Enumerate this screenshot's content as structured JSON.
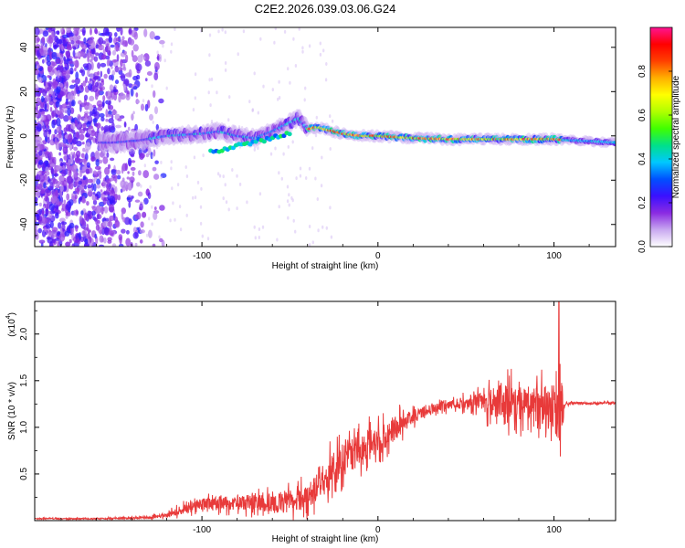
{
  "figure_title": "C2E2.2026.039.03.06.G24",
  "chart_data": [
    {
      "type": "heatmap",
      "title": "C2E2.2026.039.03.06.G24",
      "xlabel": "Height of straight line (km)",
      "ylabel": "Frequency (Hz)",
      "xlim": [
        -195,
        135
      ],
      "ylim": [
        -50,
        49
      ],
      "x_ticks": [
        -100,
        0,
        100
      ],
      "x_tick_labels": [
        "-100",
        "0",
        "100"
      ],
      "y_ticks": [
        -40,
        -20,
        0,
        20,
        40
      ],
      "y_tick_labels": [
        "-40",
        "-20",
        "0",
        "20",
        "40"
      ],
      "colorbar": {
        "label": "Normalized spectral amplitude",
        "range": [
          0,
          1
        ],
        "ticks": [
          0,
          0.2,
          0.4,
          0.6,
          0.8
        ],
        "tick_labels": [
          "0.0",
          "0.2",
          "0.4",
          "0.6",
          "0.8"
        ],
        "colors": [
          "#ffffff",
          "#c8a8f0",
          "#8a2be2",
          "#3a10ff",
          "#0050ff",
          "#00c8ff",
          "#00e08a",
          "#40ff00",
          "#b0ff00",
          "#ffff00",
          "#ffb000",
          "#ff4000",
          "#ff0000",
          "#ff1493"
        ]
      },
      "ridge": {
        "x": [
          -150,
          -135,
          -120,
          -100,
          -90,
          -80,
          -70,
          -60,
          -50,
          -45,
          -40,
          -35,
          -30,
          -20,
          -10,
          0,
          20,
          40,
          60,
          80,
          100,
          110,
          135
        ],
        "frequency": [
          -3,
          -2,
          0,
          1,
          2,
          0,
          -1,
          2,
          6,
          8,
          3,
          4,
          3,
          1,
          0,
          0,
          -1,
          -1.5,
          -1.5,
          -1.5,
          -1.5,
          -2,
          -3
        ]
      }
    },
    {
      "type": "line",
      "xlabel": "Height of straight line (km)",
      "ylabel": "SNR (10 * v/v)",
      "y_scale_label": "(x10",
      "y_scale_exponent": "4",
      "xlim": [
        -195,
        135
      ],
      "ylim": [
        0,
        2.35
      ],
      "x_ticks": [
        -100,
        0,
        100
      ],
      "x_tick_labels": [
        "-100",
        "0",
        "100"
      ],
      "y_ticks": [
        0.5,
        1.0,
        1.5,
        2.0
      ],
      "y_tick_labels": [
        "0.5",
        "1.0",
        "1.5",
        "2.0"
      ],
      "series": [
        {
          "name": "SNR",
          "color": "#e83a3a",
          "x": [
            -195,
            -160,
            -130,
            -120,
            -110,
            -100,
            -90,
            -80,
            -70,
            -60,
            -50,
            -40,
            -30,
            -20,
            -10,
            0,
            10,
            20,
            30,
            40,
            50,
            60,
            70,
            80,
            90,
            100,
            104,
            106,
            110,
            120,
            135
          ],
          "y": [
            0.02,
            0.02,
            0.03,
            0.06,
            0.12,
            0.18,
            0.2,
            0.18,
            0.2,
            0.18,
            0.22,
            0.24,
            0.45,
            0.65,
            0.75,
            0.85,
            1.0,
            1.12,
            1.2,
            1.24,
            1.26,
            1.27,
            1.28,
            1.26,
            1.25,
            1.22,
            1.05,
            1.25,
            1.26,
            1.26,
            1.26
          ],
          "noise": [
            0.01,
            0.01,
            0.02,
            0.05,
            0.08,
            0.1,
            0.12,
            0.12,
            0.15,
            0.15,
            0.18,
            0.22,
            0.3,
            0.3,
            0.3,
            0.25,
            0.22,
            0.12,
            0.08,
            0.08,
            0.1,
            0.2,
            0.3,
            0.3,
            0.3,
            0.4,
            0.6,
            0.02,
            0.02,
            0.02,
            0.02
          ]
        }
      ]
    }
  ]
}
